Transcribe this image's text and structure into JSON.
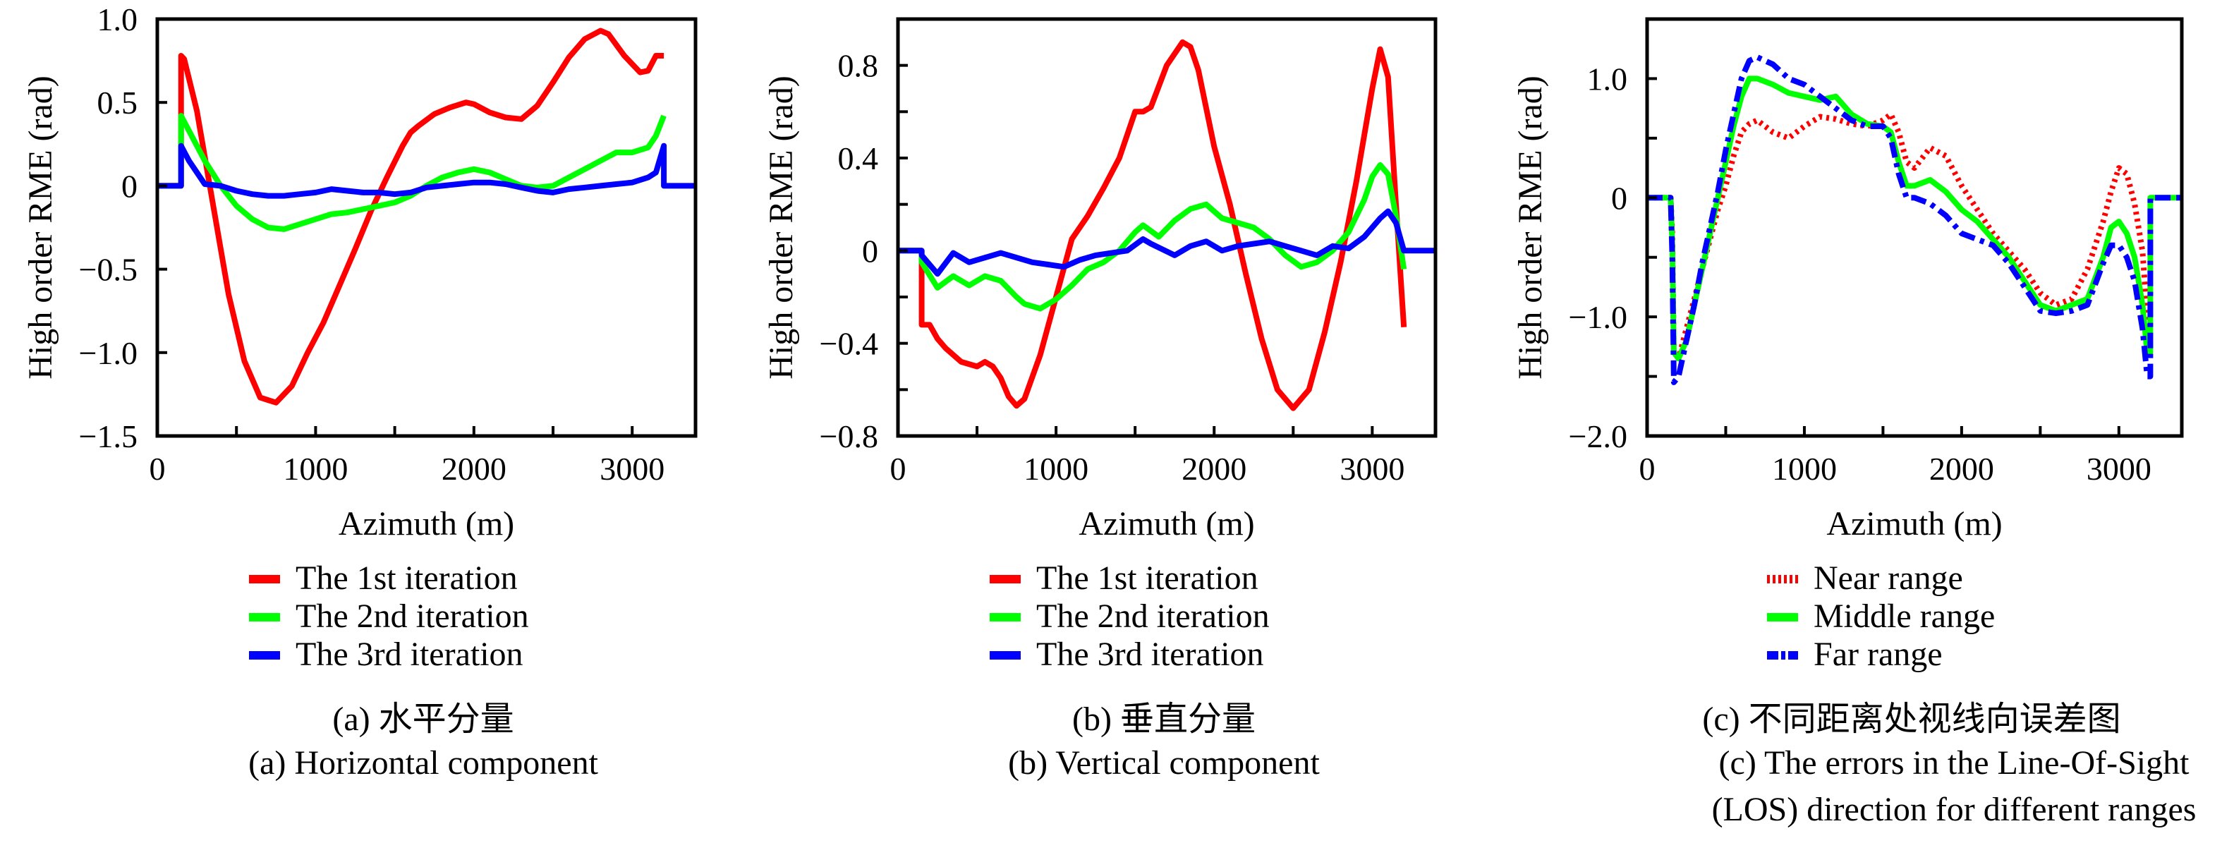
{
  "chart_data": [
    {
      "id": "a",
      "type": "line",
      "title": "",
      "xlabel": "Azimuth (m)",
      "ylabel": "High order RME (rad)",
      "xlim": [
        0,
        3400
      ],
      "ylim": [
        -1.5,
        1.0
      ],
      "xticks": [
        0,
        1000,
        2000,
        3000
      ],
      "xtick_labels": [
        "0",
        "1000",
        "2000",
        "3000"
      ],
      "xminor": [
        500,
        1500,
        2500
      ],
      "yticks": [
        1.0,
        0.5,
        0,
        -0.5,
        -1.0,
        -1.5
      ],
      "ytick_labels": [
        "1.0",
        "0.5",
        "0",
        "-0.5",
        "-1.0",
        "-1.5"
      ],
      "grid": false,
      "legend_position": "below",
      "caption_cn": "(a) 水平分量",
      "caption_en": [
        "(a) Horizontal component"
      ],
      "series": [
        {
          "name": "The 1st iteration",
          "color": "#ff0000",
          "style": "solid",
          "x": [
            0,
            150,
            150,
            170,
            250,
            350,
            450,
            550,
            650,
            750,
            850,
            950,
            1050,
            1150,
            1250,
            1350,
            1450,
            1550,
            1600,
            1650,
            1750,
            1850,
            1950,
            2000,
            2100,
            2200,
            2300,
            2400,
            2500,
            2600,
            2700,
            2800,
            2850,
            2950,
            3050,
            3100,
            3150,
            3200,
            3200
          ],
          "y": [
            0,
            0,
            0.78,
            0.76,
            0.45,
            -0.1,
            -0.65,
            -1.05,
            -1.27,
            -1.3,
            -1.2,
            -1.0,
            -0.82,
            -0.6,
            -0.38,
            -0.15,
            0.05,
            0.24,
            0.32,
            0.36,
            0.43,
            0.47,
            0.5,
            0.49,
            0.44,
            0.41,
            0.4,
            0.48,
            0.62,
            0.77,
            0.88,
            0.93,
            0.91,
            0.78,
            0.68,
            0.69,
            0.78,
            0.78,
            0.78
          ]
        },
        {
          "name": "The 2nd iteration",
          "color": "#00ff00",
          "style": "solid",
          "x": [
            0,
            150,
            150,
            200,
            300,
            400,
            500,
            600,
            700,
            800,
            900,
            1000,
            1100,
            1200,
            1300,
            1400,
            1500,
            1600,
            1700,
            1800,
            1900,
            2000,
            2100,
            2200,
            2300,
            2400,
            2500,
            2600,
            2700,
            2800,
            2900,
            3000,
            3100,
            3150,
            3200,
            3200
          ],
          "y": [
            0,
            0,
            0.42,
            0.33,
            0.15,
            0.0,
            -0.12,
            -0.2,
            -0.25,
            -0.26,
            -0.23,
            -0.2,
            -0.17,
            -0.16,
            -0.14,
            -0.12,
            -0.1,
            -0.06,
            0.0,
            0.05,
            0.08,
            0.1,
            0.08,
            0.04,
            0.0,
            -0.01,
            0.0,
            0.05,
            0.1,
            0.15,
            0.2,
            0.2,
            0.23,
            0.3,
            0.42,
            0.42
          ]
        },
        {
          "name": "The 3rd iteration",
          "color": "#0000ff",
          "style": "solid",
          "x": [
            0,
            150,
            150,
            200,
            300,
            400,
            500,
            600,
            700,
            800,
            900,
            1000,
            1100,
            1200,
            1300,
            1400,
            1500,
            1600,
            1700,
            1800,
            1900,
            2000,
            2100,
            2200,
            2300,
            2400,
            2500,
            2600,
            2700,
            2800,
            2900,
            3000,
            3100,
            3150,
            3200,
            3200,
            3400
          ],
          "y": [
            0,
            0,
            0.24,
            0.15,
            0.01,
            0.0,
            -0.03,
            -0.05,
            -0.06,
            -0.06,
            -0.05,
            -0.04,
            -0.02,
            -0.03,
            -0.04,
            -0.04,
            -0.05,
            -0.04,
            -0.01,
            0.0,
            0.01,
            0.02,
            0.02,
            0.01,
            -0.01,
            -0.03,
            -0.04,
            -0.02,
            -0.01,
            0.0,
            0.01,
            0.02,
            0.05,
            0.08,
            0.24,
            0.0,
            0.0
          ]
        }
      ]
    },
    {
      "id": "b",
      "type": "line",
      "title": "",
      "xlabel": "Azimuth (m)",
      "ylabel": "High order RME (rad)",
      "xlim": [
        0,
        3400
      ],
      "ylim": [
        -0.8,
        1.0
      ],
      "xticks": [
        0,
        1000,
        2000,
        3000
      ],
      "xtick_labels": [
        "0",
        "1000",
        "2000",
        "3000"
      ],
      "xminor": [
        500,
        1500,
        2500
      ],
      "yticks": [
        0.8,
        0.4,
        0,
        -0.4,
        -0.8
      ],
      "ytick_labels": [
        "0.8",
        "0.4",
        "0",
        "-0.4",
        "-0.8"
      ],
      "yminor": [
        0.6,
        0.2,
        -0.2,
        -0.6
      ],
      "grid": false,
      "legend_position": "below",
      "caption_cn": "(b) 垂直分量",
      "caption_en": [
        "(b) Vertical component"
      ],
      "series": [
        {
          "name": "The 1st iteration",
          "color": "#ff0000",
          "style": "solid",
          "x": [
            0,
            150,
            150,
            200,
            250,
            300,
            400,
            500,
            550,
            600,
            650,
            700,
            750,
            800,
            900,
            1000,
            1100,
            1200,
            1300,
            1400,
            1500,
            1550,
            1600,
            1700,
            1800,
            1850,
            1900,
            2000,
            2100,
            2200,
            2300,
            2400,
            2500,
            2600,
            2700,
            2800,
            2900,
            3000,
            3050,
            3100,
            3150,
            3200
          ],
          "y": [
            0,
            0,
            -0.32,
            -0.32,
            -0.38,
            -0.42,
            -0.48,
            -0.5,
            -0.48,
            -0.5,
            -0.55,
            -0.63,
            -0.67,
            -0.64,
            -0.45,
            -0.2,
            0.05,
            0.15,
            0.27,
            0.4,
            0.6,
            0.6,
            0.62,
            0.8,
            0.9,
            0.88,
            0.78,
            0.45,
            0.2,
            -0.1,
            -0.38,
            -0.6,
            -0.68,
            -0.6,
            -0.35,
            -0.05,
            0.3,
            0.7,
            0.87,
            0.75,
            0.2,
            -0.33
          ]
        },
        {
          "name": "The 2nd iteration",
          "color": "#00ff00",
          "style": "solid",
          "x": [
            0,
            150,
            150,
            250,
            350,
            450,
            550,
            650,
            750,
            800,
            900,
            1000,
            1100,
            1200,
            1300,
            1400,
            1500,
            1550,
            1650,
            1750,
            1850,
            1950,
            2050,
            2150,
            2250,
            2350,
            2450,
            2550,
            2650,
            2750,
            2850,
            2950,
            3000,
            3050,
            3100,
            3150,
            3200
          ],
          "y": [
            0,
            0,
            -0.05,
            -0.16,
            -0.11,
            -0.15,
            -0.11,
            -0.13,
            -0.2,
            -0.23,
            -0.25,
            -0.21,
            -0.15,
            -0.08,
            -0.05,
            0.0,
            0.08,
            0.11,
            0.06,
            0.13,
            0.18,
            0.2,
            0.14,
            0.12,
            0.1,
            0.05,
            -0.02,
            -0.07,
            -0.05,
            0.0,
            0.08,
            0.22,
            0.32,
            0.37,
            0.33,
            0.15,
            -0.08
          ]
        },
        {
          "name": "The 3rd iteration",
          "color": "#0000ff",
          "style": "solid",
          "x": [
            0,
            150,
            150,
            250,
            350,
            450,
            550,
            650,
            750,
            850,
            950,
            1050,
            1150,
            1250,
            1350,
            1450,
            1550,
            1600,
            1750,
            1850,
            1950,
            2050,
            2150,
            2250,
            2350,
            2450,
            2550,
            2650,
            2750,
            2850,
            2950,
            3050,
            3100,
            3150,
            3200,
            3200,
            3400
          ],
          "y": [
            0,
            0,
            -0.02,
            -0.1,
            -0.01,
            -0.05,
            -0.03,
            -0.01,
            -0.03,
            -0.05,
            -0.06,
            -0.07,
            -0.04,
            -0.02,
            -0.01,
            0.0,
            0.05,
            0.03,
            -0.02,
            0.02,
            0.04,
            0.0,
            0.02,
            0.03,
            0.04,
            0.02,
            0.0,
            -0.02,
            0.02,
            0.01,
            0.06,
            0.14,
            0.17,
            0.12,
            0.0,
            0.0,
            0.0
          ]
        }
      ]
    },
    {
      "id": "c",
      "type": "line",
      "title": "",
      "xlabel": "Azimuth (m)",
      "ylabel": "High order RME (rad)",
      "xlim": [
        0,
        3400
      ],
      "ylim": [
        -2.0,
        1.5
      ],
      "xticks": [
        0,
        1000,
        2000,
        3000
      ],
      "xtick_labels": [
        "0",
        "1000",
        "2000",
        "3000"
      ],
      "xminor": [
        500,
        1500,
        2500
      ],
      "yticks": [
        1.0,
        0,
        -1.0,
        -2.0
      ],
      "ytick_labels": [
        "1.0",
        "0",
        "-1.0",
        "-2.0"
      ],
      "yminor": [
        0.5,
        -0.5,
        -1.5
      ],
      "grid": false,
      "legend_position": "below",
      "caption_cn": "(c) 不同距离处视线向误差图",
      "caption_en": [
        "(c) The errors in the Line-Of-Sight",
        "(LOS) direction for different ranges"
      ],
      "series": [
        {
          "name": "Near range",
          "color": "#ff0000",
          "style": "dotted",
          "x": [
            0,
            150,
            160,
            170,
            200,
            250,
            300,
            350,
            400,
            450,
            500,
            550,
            600,
            650,
            700,
            800,
            900,
            1000,
            1100,
            1200,
            1300,
            1400,
            1500,
            1550,
            1600,
            1650,
            1700,
            1800,
            1900,
            2000,
            2100,
            2200,
            2300,
            2400,
            2500,
            2600,
            2700,
            2800,
            2900,
            2950,
            3000,
            3050,
            3100,
            3150,
            3180,
            3200
          ],
          "y": [
            0,
            0,
            -0.3,
            -1.3,
            -1.35,
            -1.1,
            -0.85,
            -0.6,
            -0.35,
            -0.1,
            0.1,
            0.35,
            0.55,
            0.62,
            0.65,
            0.55,
            0.5,
            0.6,
            0.68,
            0.66,
            0.62,
            0.6,
            0.65,
            0.7,
            0.55,
            0.3,
            0.25,
            0.42,
            0.35,
            0.1,
            -0.1,
            -0.3,
            -0.45,
            -0.6,
            -0.8,
            -0.9,
            -0.85,
            -0.6,
            -0.2,
            0.05,
            0.25,
            0.2,
            -0.05,
            -0.45,
            -1.0,
            -1.3
          ]
        },
        {
          "name": "Middle range",
          "color": "#00ff00",
          "style": "solid",
          "x": [
            0,
            150,
            160,
            170,
            200,
            250,
            300,
            350,
            400,
            450,
            500,
            550,
            600,
            650,
            700,
            800,
            900,
            1000,
            1100,
            1200,
            1300,
            1400,
            1500,
            1550,
            1600,
            1650,
            1700,
            1800,
            1900,
            2000,
            2100,
            2200,
            2300,
            2400,
            2500,
            2600,
            2700,
            2800,
            2900,
            2950,
            3000,
            3050,
            3100,
            3150,
            3180,
            3200,
            3200,
            3400
          ],
          "y": [
            0,
            0,
            -0.4,
            -1.3,
            -1.35,
            -1.2,
            -0.9,
            -0.6,
            -0.3,
            0.0,
            0.3,
            0.6,
            0.85,
            1.0,
            1.0,
            0.95,
            0.88,
            0.85,
            0.82,
            0.85,
            0.7,
            0.62,
            0.6,
            0.55,
            0.3,
            0.1,
            0.1,
            0.15,
            0.05,
            -0.1,
            -0.2,
            -0.35,
            -0.5,
            -0.7,
            -0.9,
            -0.95,
            -0.9,
            -0.85,
            -0.5,
            -0.25,
            -0.2,
            -0.3,
            -0.5,
            -0.9,
            -1.3,
            -1.3,
            0.0,
            0.0
          ]
        },
        {
          "name": "Far range",
          "color": "#0000ff",
          "style": "dashdot",
          "x": [
            0,
            150,
            160,
            170,
            200,
            250,
            300,
            350,
            400,
            450,
            500,
            550,
            600,
            650,
            700,
            800,
            900,
            1000,
            1100,
            1200,
            1300,
            1400,
            1500,
            1550,
            1600,
            1650,
            1700,
            1800,
            1900,
            2000,
            2100,
            2200,
            2300,
            2400,
            2500,
            2600,
            2700,
            2800,
            2900,
            2950,
            3000,
            3050,
            3100,
            3150,
            3180,
            3200,
            3200,
            3400
          ],
          "y": [
            0,
            0,
            -0.5,
            -1.55,
            -1.5,
            -1.2,
            -0.9,
            -0.55,
            -0.25,
            0.05,
            0.4,
            0.7,
            1.0,
            1.15,
            1.18,
            1.12,
            1.0,
            0.95,
            0.85,
            0.75,
            0.65,
            0.6,
            0.6,
            0.5,
            0.2,
            0.0,
            0.0,
            -0.05,
            -0.15,
            -0.3,
            -0.35,
            -0.4,
            -0.55,
            -0.75,
            -0.95,
            -0.97,
            -0.95,
            -0.9,
            -0.55,
            -0.4,
            -0.4,
            -0.5,
            -0.7,
            -1.1,
            -1.5,
            -1.5,
            0.0,
            0.0
          ]
        }
      ]
    }
  ]
}
